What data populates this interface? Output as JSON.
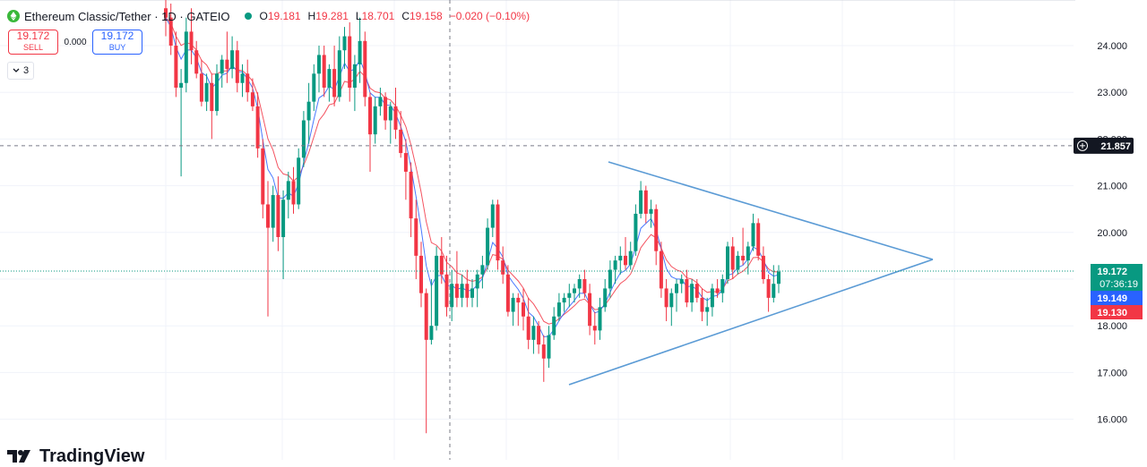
{
  "header": {
    "symbol_title": "Ethereum Classic/Tether · 1D · GATEIO",
    "ohlc": [
      {
        "key": "O",
        "value": "19.181"
      },
      {
        "key": "H",
        "value": "19.281"
      },
      {
        "key": "L",
        "value": "18.701"
      },
      {
        "key": "C",
        "value": "19.158"
      }
    ],
    "change": "−0.020 (−0.10%)"
  },
  "trade": {
    "sell_price": "19.172",
    "sell_label": "SELL",
    "spread": "0.000",
    "buy_price": "19.172",
    "buy_label": "BUY"
  },
  "indicators_toggle": {
    "count": "3"
  },
  "watermark": "TradingView",
  "price_axis": {
    "ticks": [
      "24.000",
      "23.000",
      "22.000",
      "21.000",
      "20.000",
      "18.000",
      "17.000",
      "16.000"
    ],
    "crosshair_label": "21.857",
    "last_price_label": "19.172",
    "countdown": "07:36:19",
    "ma_fast_label": "19.149",
    "ma_slow_label": "19.130"
  },
  "colors": {
    "up": "#089981",
    "down": "#f23645",
    "ma_fast": "#2962ff",
    "ma_slow": "#f23645",
    "trendline": "#5b9bd5",
    "crosshair": "#787b86"
  },
  "chart_data": {
    "type": "candlestick",
    "symbol": "ETC/USDT",
    "interval": "1D",
    "ylim": [
      15.6,
      25.0
    ],
    "crosshair_price": 21.857,
    "ohlc": [
      [
        24.8,
        25.2,
        24.2,
        24.6
      ],
      [
        24.6,
        24.9,
        23.8,
        24.0
      ],
      [
        24.0,
        24.3,
        22.9,
        23.1
      ],
      [
        23.1,
        23.5,
        21.2,
        23.2
      ],
      [
        23.2,
        24.6,
        23.0,
        24.3
      ],
      [
        24.3,
        24.8,
        23.6,
        23.9
      ],
      [
        23.9,
        24.1,
        23.3,
        23.4
      ],
      [
        23.4,
        23.7,
        22.7,
        22.8
      ],
      [
        22.8,
        23.4,
        22.6,
        23.2
      ],
      [
        23.2,
        23.4,
        22.0,
        22.6
      ],
      [
        22.6,
        23.6,
        22.5,
        23.4
      ],
      [
        23.4,
        23.8,
        23.1,
        23.7
      ],
      [
        23.7,
        24.3,
        23.2,
        23.5
      ],
      [
        23.5,
        24.2,
        23.3,
        23.9
      ],
      [
        23.9,
        24.1,
        23.0,
        23.2
      ],
      [
        23.2,
        23.6,
        22.9,
        23.4
      ],
      [
        23.4,
        23.7,
        22.8,
        23.0
      ],
      [
        23.0,
        23.3,
        22.6,
        22.7
      ],
      [
        22.7,
        23.0,
        21.6,
        21.8
      ],
      [
        21.8,
        22.0,
        20.3,
        20.6
      ],
      [
        20.6,
        21.1,
        18.2,
        20.1
      ],
      [
        20.1,
        21.0,
        19.8,
        20.8
      ],
      [
        20.8,
        21.2,
        19.6,
        19.9
      ],
      [
        19.9,
        20.9,
        19.0,
        20.7
      ],
      [
        20.7,
        21.3,
        20.3,
        21.1
      ],
      [
        21.1,
        21.4,
        20.4,
        20.6
      ],
      [
        20.6,
        21.8,
        20.5,
        21.6
      ],
      [
        21.6,
        22.6,
        21.4,
        22.4
      ],
      [
        22.4,
        23.2,
        21.9,
        22.8
      ],
      [
        22.8,
        23.6,
        22.6,
        23.4
      ],
      [
        23.4,
        24.0,
        23.0,
        23.8
      ],
      [
        23.8,
        24.0,
        22.9,
        23.1
      ],
      [
        23.1,
        23.6,
        22.8,
        23.5
      ],
      [
        23.5,
        24.0,
        22.7,
        22.9
      ],
      [
        22.9,
        24.2,
        22.8,
        23.9
      ],
      [
        23.9,
        24.4,
        23.5,
        24.2
      ],
      [
        24.2,
        24.5,
        22.8,
        23.1
      ],
      [
        23.1,
        23.8,
        22.6,
        23.6
      ],
      [
        23.6,
        24.6,
        23.2,
        24.1
      ],
      [
        24.1,
        24.3,
        22.7,
        22.9
      ],
      [
        22.9,
        23.0,
        21.3,
        22.1
      ],
      [
        22.1,
        22.9,
        21.9,
        22.7
      ],
      [
        22.7,
        23.1,
        22.5,
        22.9
      ],
      [
        22.9,
        23.0,
        22.2,
        22.4
      ],
      [
        22.4,
        22.8,
        21.9,
        22.7
      ],
      [
        22.7,
        23.1,
        22.0,
        22.2
      ],
      [
        22.2,
        22.6,
        21.6,
        21.7
      ],
      [
        21.7,
        22.0,
        20.7,
        21.3
      ],
      [
        21.3,
        21.5,
        19.9,
        20.3
      ],
      [
        20.3,
        20.7,
        19.0,
        19.5
      ],
      [
        19.5,
        19.8,
        18.4,
        18.7
      ],
      [
        18.7,
        18.8,
        15.7,
        17.7
      ],
      [
        17.7,
        19.0,
        17.6,
        18.0
      ],
      [
        18.0,
        19.7,
        17.9,
        19.5
      ],
      [
        19.5,
        19.9,
        18.9,
        19.1
      ],
      [
        19.1,
        19.5,
        18.2,
        18.4
      ],
      [
        18.4,
        19.2,
        18.1,
        18.9
      ],
      [
        18.9,
        19.6,
        18.4,
        18.6
      ],
      [
        18.6,
        19.1,
        18.4,
        18.9
      ],
      [
        18.9,
        19.2,
        18.4,
        18.6
      ],
      [
        18.6,
        19.0,
        18.4,
        18.8
      ],
      [
        18.8,
        19.2,
        18.4,
        19.1
      ],
      [
        19.1,
        19.5,
        18.8,
        19.3
      ],
      [
        19.3,
        20.3,
        19.2,
        20.1
      ],
      [
        20.1,
        20.7,
        19.9,
        20.6
      ],
      [
        20.6,
        20.7,
        19.2,
        19.4
      ],
      [
        19.4,
        19.7,
        18.9,
        19.1
      ],
      [
        19.1,
        19.3,
        18.2,
        18.3
      ],
      [
        18.3,
        18.7,
        18.0,
        18.6
      ],
      [
        18.6,
        18.7,
        18.0,
        18.5
      ],
      [
        18.5,
        18.8,
        17.9,
        18.2
      ],
      [
        18.2,
        18.6,
        17.5,
        17.7
      ],
      [
        17.7,
        18.2,
        17.4,
        18.0
      ],
      [
        18.0,
        18.1,
        17.4,
        17.6
      ],
      [
        17.6,
        17.8,
        16.8,
        17.3
      ],
      [
        17.3,
        18.0,
        17.1,
        17.8
      ],
      [
        17.8,
        18.4,
        17.7,
        18.2
      ],
      [
        18.2,
        18.7,
        18.1,
        18.5
      ],
      [
        18.5,
        18.7,
        18.3,
        18.6
      ],
      [
        18.6,
        18.9,
        18.4,
        18.7
      ],
      [
        18.7,
        18.9,
        18.5,
        18.8
      ],
      [
        18.8,
        19.1,
        18.6,
        19.0
      ],
      [
        19.0,
        19.2,
        18.6,
        18.7
      ],
      [
        18.7,
        18.9,
        17.8,
        18.0
      ],
      [
        18.0,
        18.3,
        17.6,
        17.9
      ],
      [
        17.9,
        18.6,
        17.7,
        18.4
      ],
      [
        18.4,
        19.0,
        18.3,
        18.8
      ],
      [
        18.8,
        19.4,
        18.6,
        19.2
      ],
      [
        19.2,
        19.5,
        18.9,
        19.4
      ],
      [
        19.4,
        19.7,
        19.1,
        19.5
      ],
      [
        19.5,
        19.9,
        19.2,
        19.3
      ],
      [
        19.3,
        19.8,
        19.2,
        19.6
      ],
      [
        19.6,
        20.6,
        19.5,
        20.4
      ],
      [
        20.4,
        21.1,
        20.3,
        20.9
      ],
      [
        20.9,
        21.0,
        20.2,
        20.4
      ],
      [
        20.4,
        20.7,
        20.1,
        20.5
      ],
      [
        20.5,
        20.6,
        19.3,
        19.6
      ],
      [
        19.6,
        19.8,
        18.6,
        18.8
      ],
      [
        18.8,
        19.0,
        18.1,
        18.4
      ],
      [
        18.4,
        18.8,
        18.0,
        18.7
      ],
      [
        18.7,
        19.0,
        18.3,
        18.9
      ],
      [
        18.9,
        19.1,
        18.7,
        19.0
      ],
      [
        19.0,
        19.2,
        18.4,
        18.5
      ],
      [
        18.5,
        19.0,
        18.3,
        18.9
      ],
      [
        18.9,
        19.0,
        18.5,
        18.6
      ],
      [
        18.6,
        18.8,
        18.1,
        18.3
      ],
      [
        18.3,
        18.6,
        18.0,
        18.4
      ],
      [
        18.4,
        18.9,
        18.2,
        18.8
      ],
      [
        18.8,
        19.0,
        18.6,
        18.7
      ],
      [
        18.7,
        19.1,
        18.5,
        19.0
      ],
      [
        19.0,
        19.8,
        18.9,
        19.7
      ],
      [
        19.7,
        19.9,
        19.0,
        19.2
      ],
      [
        19.2,
        19.6,
        19.1,
        19.5
      ],
      [
        19.5,
        20.1,
        19.3,
        19.4
      ],
      [
        19.4,
        19.8,
        19.1,
        19.7
      ],
      [
        19.7,
        20.4,
        19.6,
        20.2
      ],
      [
        20.2,
        20.3,
        19.4,
        19.5
      ],
      [
        19.5,
        19.7,
        18.9,
        19.0
      ],
      [
        19.0,
        19.1,
        18.3,
        18.6
      ],
      [
        18.6,
        19.3,
        18.5,
        18.9
      ],
      [
        18.9,
        19.3,
        18.7,
        19.16
      ]
    ],
    "ma_fast_last": 19.149,
    "ma_slow_last": 19.13,
    "trendlines": [
      {
        "from": [
          94,
          21.5
        ],
        "to": [
          166,
          19.4
        ]
      },
      {
        "from": [
          82,
          16.7
        ],
        "to": [
          166,
          19.4
        ]
      }
    ]
  }
}
